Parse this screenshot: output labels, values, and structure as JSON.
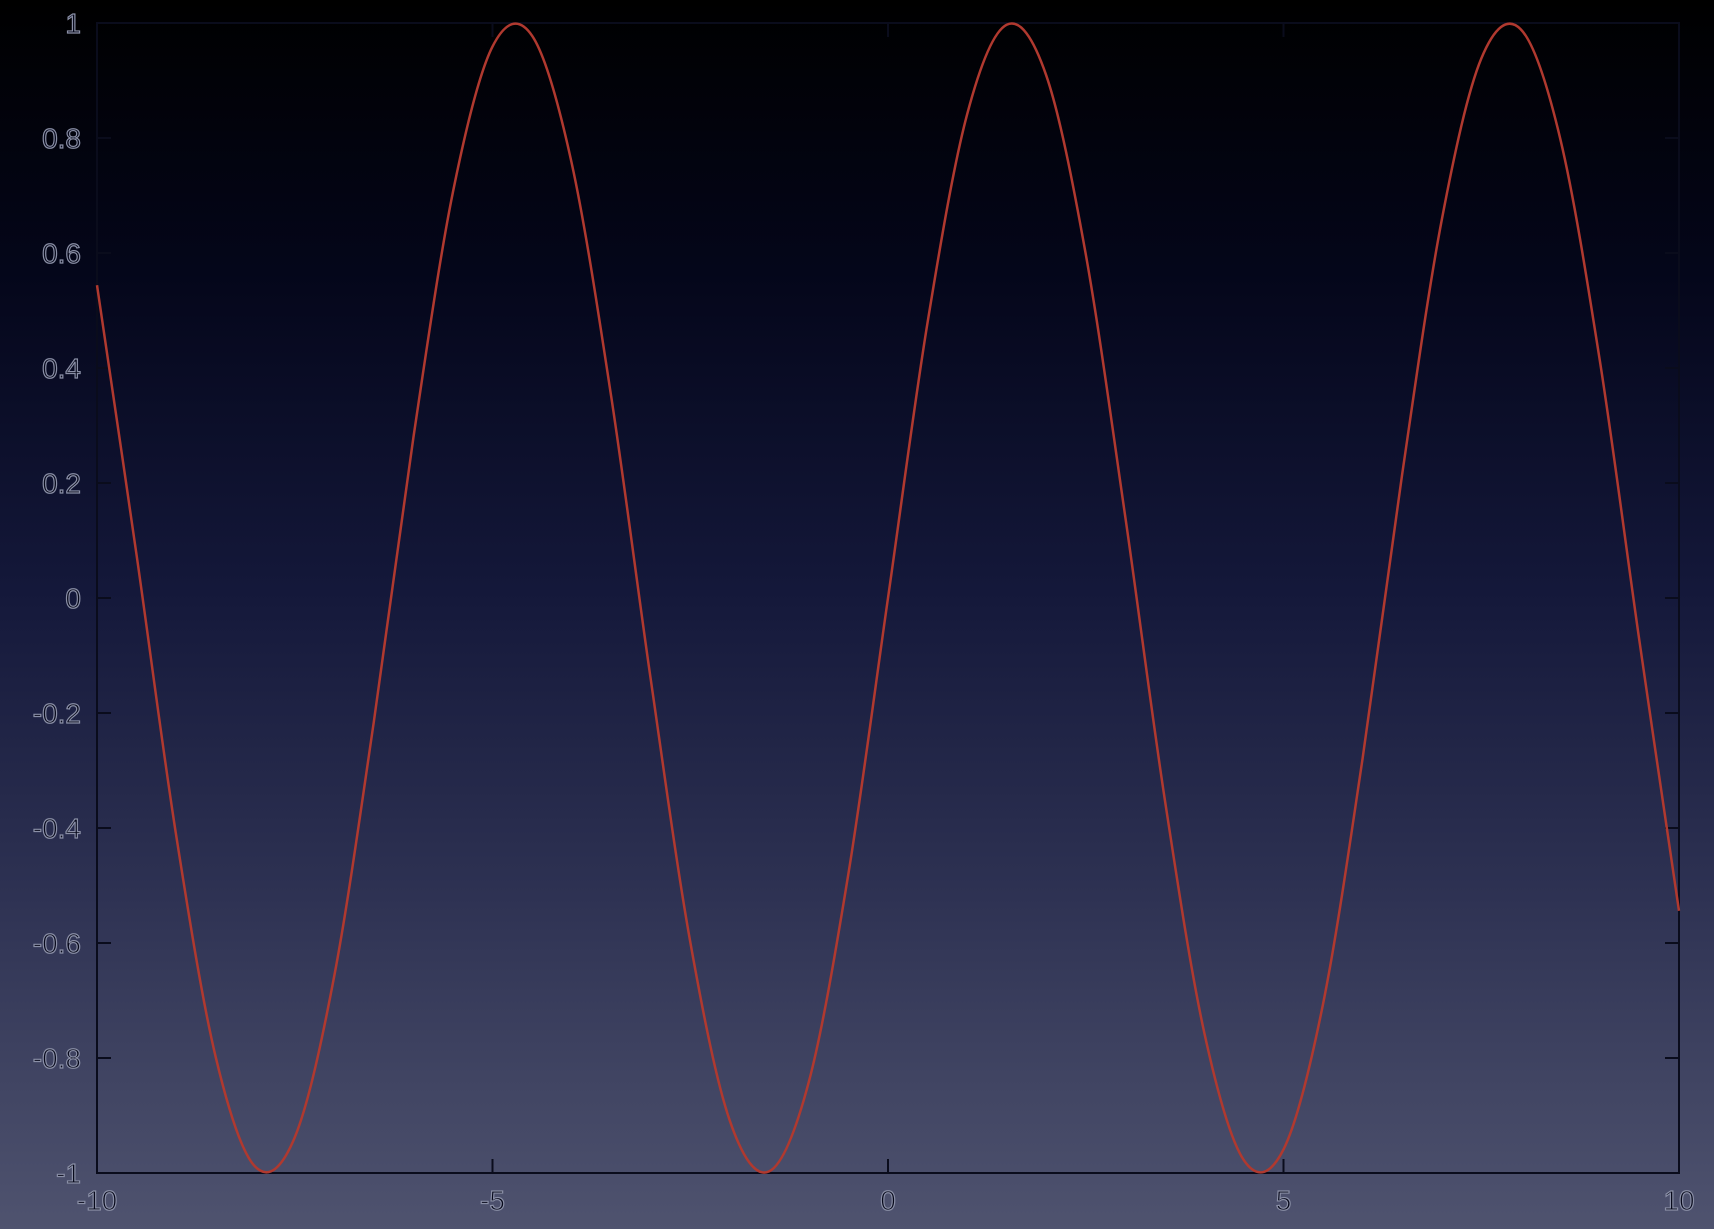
{
  "chart_data": {
    "type": "line",
    "title": "",
    "xlabel": "",
    "ylabel": "",
    "xlim": [
      -10,
      10
    ],
    "ylim": [
      -1,
      1
    ],
    "x_ticks": [
      "-10",
      "-5",
      "0",
      "5",
      "10"
    ],
    "y_ticks": [
      "-1",
      "-0.8",
      "-0.6",
      "-0.4",
      "-0.2",
      "0",
      "0.2",
      "0.4",
      "0.6",
      "0.8",
      "1"
    ],
    "grid": false,
    "legend": "none",
    "series": [
      {
        "color": "#b0392f",
        "x": [
          -10,
          -9.5,
          -9,
          -8.5,
          -8,
          -7.5,
          -7,
          -6.5,
          -6,
          -5.5,
          -5,
          -4.5,
          -4,
          -3.5,
          -3,
          -2.5,
          -2,
          -1.5,
          -1,
          -0.5,
          0,
          0.5,
          1,
          1.5,
          2,
          2.5,
          3,
          3.5,
          4,
          4.5,
          5,
          5.5,
          6,
          6.5,
          7,
          7.5,
          8,
          8.5,
          9,
          9.5,
          10
        ],
        "values": [
          0.544,
          0.075,
          -0.412,
          -0.798,
          -0.989,
          -0.938,
          -0.657,
          -0.215,
          0.279,
          0.706,
          0.959,
          0.978,
          0.757,
          0.351,
          -0.141,
          -0.598,
          -0.909,
          -0.997,
          -0.841,
          -0.479,
          0,
          0.479,
          0.841,
          0.997,
          0.909,
          0.598,
          0.141,
          -0.351,
          -0.757,
          -0.978,
          -0.959,
          -0.706,
          -0.279,
          0.215,
          0.657,
          0.938,
          0.989,
          0.798,
          0.412,
          -0.075,
          -0.544
        ]
      }
    ]
  },
  "colors": {
    "axis": "#0a0c1c",
    "curve": "#b0392f",
    "tick_label_outline": "#8a8fa6"
  }
}
